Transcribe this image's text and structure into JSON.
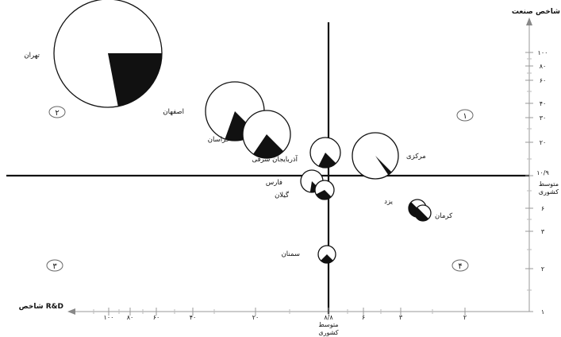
{
  "chart_data": {
    "type": "bubble",
    "y_axis": {
      "title": "شاخص صنعت",
      "scale": "log",
      "ticks": [
        "۱۰۰",
        "۸۰",
        "۶۰",
        "۴۰",
        "۳۰",
        "۲۰",
        "۱۰/۹",
        "۶",
        "۳",
        "۲",
        "۱"
      ]
    },
    "x_axis": {
      "title": "شاخص R&D",
      "scale": "log-reversed",
      "ticks": [
        "۱۰۰",
        "۸۰",
        "۶۰",
        "۴۰",
        "۲۰",
        "۸/۸",
        "۶",
        "۳",
        "۲"
      ]
    },
    "averages": {
      "x_label": [
        "متوسط",
        "کشوری"
      ],
      "y_label": [
        "متوسط",
        "کشوری"
      ]
    },
    "quadrants": [
      "۱",
      "۲",
      "۳",
      "۴"
    ],
    "bubbles": [
      {
        "name": "تهران",
        "share": 0.22,
        "size": "largest"
      },
      {
        "name": "اصفهان",
        "share": 0.18
      },
      {
        "name": "خراسان",
        "share": 0.22
      },
      {
        "name": "آذربایجان شرقی",
        "share": 0.2
      },
      {
        "name": "مرکزی",
        "share": 0.03
      },
      {
        "name": "فارس",
        "share": 0.15
      },
      {
        "name": "گیلان",
        "share": 0.3
      },
      {
        "name": "یزد",
        "share": 0.5
      },
      {
        "name": "کرمان",
        "share": 0.5
      },
      {
        "name": "سمنان",
        "share": 0.25
      }
    ]
  }
}
